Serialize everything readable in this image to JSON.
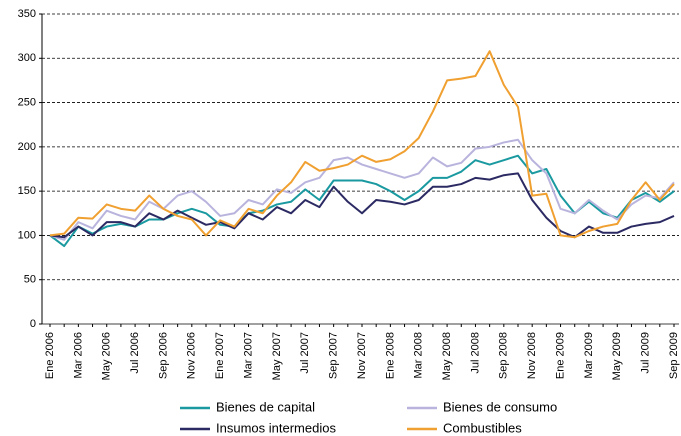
{
  "chart_data": {
    "type": "line",
    "categories": [
      "Ene 2006",
      null,
      "Mar 2006",
      null,
      "May 2006",
      null,
      "Jul 2006",
      null,
      "Sep 2006",
      null,
      "Nov 2006",
      null,
      "Ene 2007",
      null,
      "Mar 2007",
      null,
      "May 2007",
      null,
      "Jul 2007",
      null,
      "Sep 2007",
      null,
      "Nov 2007",
      null,
      "Ene 2008",
      null,
      "Mar 2008",
      null,
      "May 2008",
      null,
      "Jul 2008",
      null,
      "Sep 2008",
      null,
      "Nov 2008",
      null,
      "Ene 2009",
      null,
      "Mar 2009",
      null,
      "May 2009",
      null,
      "Jul 2009",
      null,
      "Sep 2009"
    ],
    "series": [
      {
        "name": "Bienes de capital",
        "color": "#1a9aa0",
        "values": [
          100,
          88,
          110,
          102,
          110,
          113,
          110,
          118,
          118,
          125,
          130,
          125,
          112,
          110,
          125,
          128,
          135,
          138,
          152,
          140,
          162,
          162,
          162,
          158,
          150,
          140,
          150,
          165,
          165,
          172,
          185,
          180,
          185,
          190,
          170,
          175,
          145,
          125,
          138,
          125,
          120,
          140,
          148,
          138,
          150
        ]
      },
      {
        "name": "Bienes de consumo",
        "color": "#b9b4dd",
        "values": [
          100,
          95,
          115,
          108,
          128,
          122,
          118,
          138,
          130,
          145,
          150,
          138,
          122,
          125,
          140,
          135,
          152,
          148,
          160,
          165,
          185,
          188,
          180,
          175,
          170,
          165,
          170,
          188,
          178,
          182,
          198,
          200,
          205,
          208,
          185,
          170,
          130,
          125,
          140,
          128,
          118,
          135,
          145,
          142,
          160
        ]
      },
      {
        "name": "Insumos intermedios",
        "color": "#2c2a63",
        "values": [
          100,
          98,
          110,
          100,
          115,
          115,
          110,
          125,
          118,
          128,
          120,
          112,
          115,
          108,
          125,
          118,
          132,
          125,
          140,
          132,
          155,
          138,
          125,
          140,
          138,
          135,
          140,
          155,
          155,
          158,
          165,
          163,
          168,
          170,
          140,
          120,
          105,
          98,
          110,
          103,
          103,
          110,
          113,
          115,
          122
        ]
      },
      {
        "name": "Combustibles",
        "color": "#f0a030",
        "values": [
          100,
          102,
          120,
          119,
          135,
          130,
          128,
          145,
          130,
          122,
          118,
          100,
          117,
          110,
          130,
          125,
          145,
          160,
          183,
          173,
          176,
          180,
          190,
          183,
          186,
          195,
          210,
          240,
          275,
          277,
          280,
          308,
          270,
          245,
          145,
          147,
          100,
          98,
          105,
          110,
          113,
          140,
          160,
          140,
          158
        ]
      }
    ],
    "ylim": [
      0,
      350
    ],
    "yticks": [
      0,
      50,
      100,
      150,
      200,
      250,
      300,
      350
    ],
    "grid": true
  }
}
